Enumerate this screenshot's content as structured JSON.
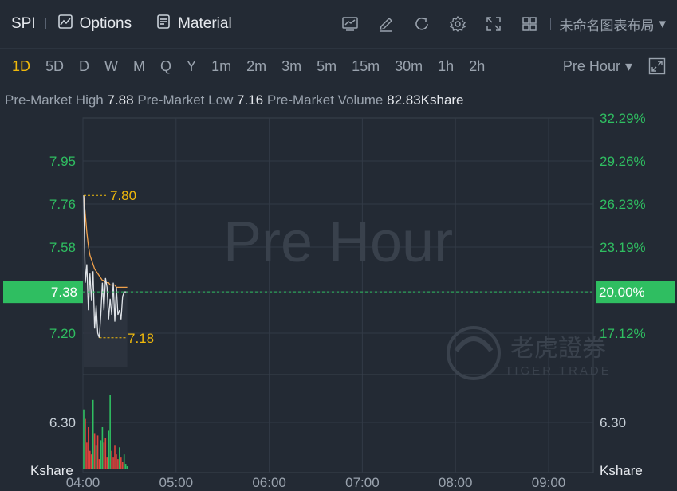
{
  "header": {
    "ticker": "SPI",
    "options_label": "Options",
    "material_label": "Material",
    "layout_name": "未命名图表布局",
    "icons": [
      "chart-icon",
      "edit-icon",
      "refresh-icon",
      "settings-icon",
      "fullscreen-icon",
      "grid-layout-icon"
    ]
  },
  "periods": [
    "1D",
    "5D",
    "D",
    "W",
    "M",
    "Q",
    "Y",
    "1m",
    "2m",
    "3m",
    "5m",
    "15m",
    "30m",
    "1h",
    "2h"
  ],
  "active_period": "1D",
  "session_select": "Pre Hour",
  "stats": {
    "high_label": "Pre-Market High",
    "high_value": "7.88",
    "low_label": "Pre-Market Low",
    "low_value": "7.16",
    "volume_label": "Pre-Market Volume",
    "volume_value": "82.83Kshare"
  },
  "colors": {
    "accent": "#f0b90b",
    "up": "#2fbe61",
    "down": "#e0443c",
    "price_line": "#dfe3e8",
    "avg_line": "#f0a04b",
    "current_badge": "#2fbe61"
  },
  "chart_data": {
    "type": "line",
    "watermark": "Pre Hour",
    "brand_watermark": {
      "cn": "老虎證券",
      "en": "TIGER TRADE"
    },
    "x_ticks": [
      "04:00",
      "05:00",
      "06:00",
      "07:00",
      "08:00",
      "09:00"
    ],
    "y_left_ticks": [
      "7.95",
      "7.76",
      "7.58",
      "7.38",
      "7.20",
      "6.30"
    ],
    "y_right_ticks": [
      "32.29%",
      "29.26%",
      "26.23%",
      "23.19%",
      "20.00%",
      "17.12%",
      "6.30"
    ],
    "volume_unit_label": "Kshare",
    "current_price": "7.38",
    "current_pct": "20.00%",
    "high_marker": "7.80",
    "low_marker": "7.18",
    "price_series": {
      "name": "",
      "x": [
        "04:00",
        "04:01",
        "04:02",
        "04:03",
        "04:04",
        "04:05",
        "04:06",
        "04:07",
        "04:08",
        "04:09",
        "04:10",
        "04:11",
        "04:12",
        "04:13",
        "04:14",
        "04:15",
        "04:16",
        "04:17",
        "04:18",
        "04:19",
        "04:20",
        "04:21",
        "04:22",
        "04:23",
        "04:24",
        "04:25",
        "04:26",
        "04:27",
        "04:28"
      ],
      "values": [
        7.8,
        7.42,
        7.5,
        7.3,
        7.46,
        7.34,
        7.47,
        7.22,
        7.32,
        7.2,
        7.18,
        7.28,
        7.42,
        7.3,
        7.44,
        7.4,
        7.26,
        7.35,
        7.28,
        7.42,
        7.25,
        7.4,
        7.28,
        7.3,
        7.26,
        7.36,
        7.38,
        7.38,
        7.38
      ]
    },
    "avg_series": {
      "name": "",
      "values": [
        7.8,
        7.72,
        7.64,
        7.58,
        7.54,
        7.52,
        7.5,
        7.48,
        7.47,
        7.46,
        7.45,
        7.44,
        7.43,
        7.43,
        7.42,
        7.42,
        7.42,
        7.41,
        7.41,
        7.41,
        7.41,
        7.4,
        7.4,
        7.4,
        7.4,
        7.4,
        7.4,
        7.4,
        7.4
      ]
    },
    "volume": {
      "values": [
        50,
        42,
        22,
        35,
        15,
        12,
        58,
        30,
        20,
        28,
        8,
        24,
        35,
        22,
        26,
        10,
        32,
        62,
        15,
        10,
        20,
        12,
        8,
        18,
        10,
        6,
        12,
        4,
        2
      ],
      "colors": [
        "up",
        "down",
        "down",
        "down",
        "down",
        "down",
        "up",
        "down",
        "up",
        "down",
        "down",
        "up",
        "up",
        "down",
        "down",
        "down",
        "up",
        "up",
        "down",
        "down",
        "down",
        "down",
        "down",
        "up",
        "down",
        "down",
        "up",
        "up",
        "up"
      ]
    }
  }
}
